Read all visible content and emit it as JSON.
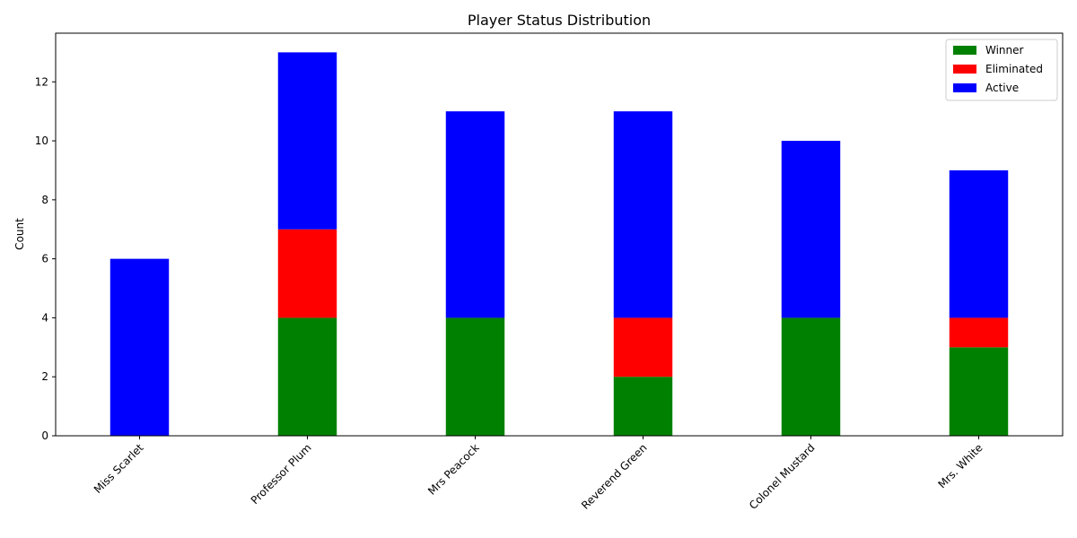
{
  "chart_data": {
    "type": "bar",
    "stacked": true,
    "title": "Player Status Distribution",
    "xlabel": "",
    "ylabel": "Count",
    "ylim": [
      0,
      13.65
    ],
    "yticks": [
      0,
      2,
      4,
      6,
      8,
      10,
      12
    ],
    "categories": [
      "Miss Scarlet",
      "Professor Plum",
      "Mrs Peacock",
      "Reverend Green",
      "Colonel Mustard",
      "Mrs. White"
    ],
    "series": [
      {
        "name": "Winner",
        "color": "#008000",
        "values": [
          0,
          4,
          4,
          2,
          4,
          3
        ]
      },
      {
        "name": "Eliminated",
        "color": "#ff0000",
        "values": [
          0,
          3,
          0,
          2,
          0,
          1
        ]
      },
      {
        "name": "Active",
        "color": "#0000ff",
        "values": [
          6,
          6,
          7,
          7,
          6,
          5
        ]
      }
    ],
    "grid": false,
    "legend_position": "top-right",
    "xtick_rotation": 45
  }
}
